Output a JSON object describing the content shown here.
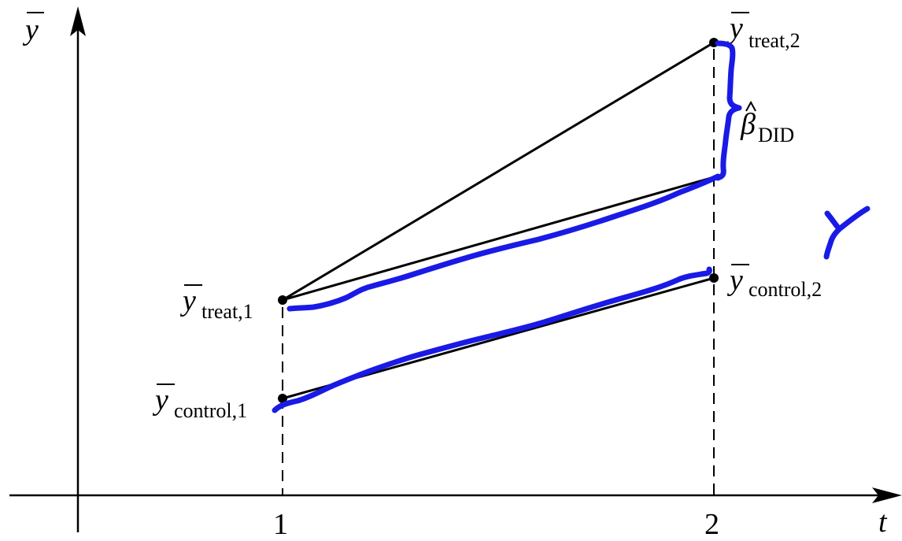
{
  "axes": {
    "y_label": "y",
    "x_label": "t",
    "x_ticks": [
      "1",
      "2"
    ]
  },
  "points": {
    "treat_1": {
      "main": "y",
      "sub": "treat,1"
    },
    "treat_2": {
      "main": "y",
      "sub": "treat,2"
    },
    "control_1": {
      "main": "y",
      "sub": "control,1"
    },
    "control_2": {
      "main": "y",
      "sub": "control,2"
    }
  },
  "estimator": {
    "main": "β",
    "sub": "DID"
  },
  "annotation": {
    "ink_color": "#1a1ae6",
    "handwritten_mark": "Y"
  },
  "colors": {
    "line": "#000000",
    "ink": "#1a1ae6"
  }
}
